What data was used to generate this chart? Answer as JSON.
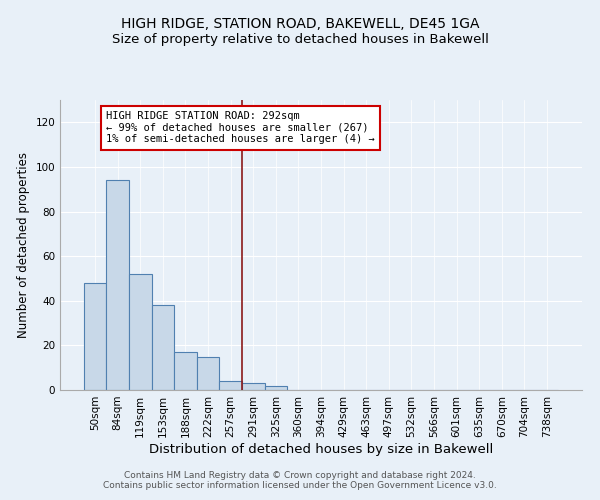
{
  "title": "HIGH RIDGE, STATION ROAD, BAKEWELL, DE45 1GA",
  "subtitle": "Size of property relative to detached houses in Bakewell",
  "xlabel": "Distribution of detached houses by size in Bakewell",
  "ylabel": "Number of detached properties",
  "bar_labels": [
    "50sqm",
    "84sqm",
    "119sqm",
    "153sqm",
    "188sqm",
    "222sqm",
    "257sqm",
    "291sqm",
    "325sqm",
    "360sqm",
    "394sqm",
    "429sqm",
    "463sqm",
    "497sqm",
    "532sqm",
    "566sqm",
    "601sqm",
    "635sqm",
    "670sqm",
    "704sqm",
    "738sqm"
  ],
  "bar_values": [
    48,
    94,
    52,
    38,
    17,
    15,
    4,
    3,
    2,
    0,
    0,
    0,
    0,
    0,
    0,
    0,
    0,
    0,
    0,
    0,
    0
  ],
  "bar_color": "#c8d8e8",
  "bar_edge_color": "#5080b0",
  "vline_color": "#8b1a1a",
  "annotation_line1": "HIGH RIDGE STATION ROAD: 292sqm",
  "annotation_line2": "← 99% of detached houses are smaller (267)",
  "annotation_line3": "1% of semi-detached houses are larger (4) →",
  "annotation_box_color": "white",
  "annotation_box_edge_color": "#cc0000",
  "ylim": [
    0,
    130
  ],
  "yticks": [
    0,
    20,
    40,
    60,
    80,
    100,
    120
  ],
  "background_color": "#e8f0f8",
  "grid_color": "white",
  "footer": "Contains HM Land Registry data © Crown copyright and database right 2024.\nContains public sector information licensed under the Open Government Licence v3.0.",
  "title_fontsize": 10,
  "subtitle_fontsize": 9.5,
  "xlabel_fontsize": 9.5,
  "ylabel_fontsize": 8.5,
  "annotation_fontsize": 7.5,
  "footer_fontsize": 6.5,
  "tick_fontsize": 7.5
}
